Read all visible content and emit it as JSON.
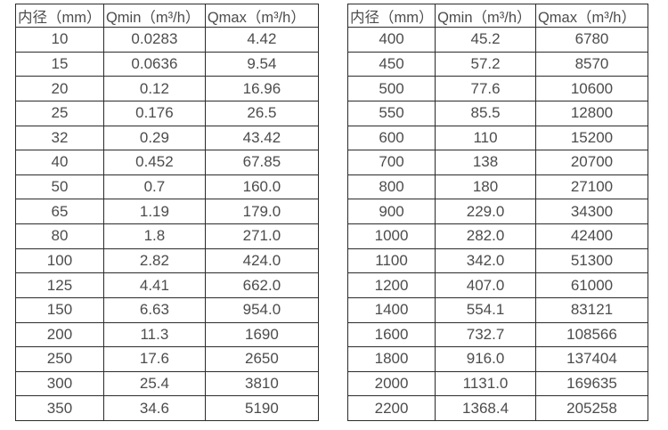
{
  "colors": {
    "background": "#ffffff",
    "table_border": "#2b2b2b",
    "table_text": "#4c4c4c"
  },
  "tables": [
    {
      "name": "flow-table-small-diameters",
      "headers": [
        "内径（mm）",
        "Qmin（m³/h）",
        "Qmax（m³/h）"
      ],
      "rows": [
        [
          "10",
          "0.0283",
          "4.42"
        ],
        [
          "15",
          "0.0636",
          "9.54"
        ],
        [
          "20",
          "0.12",
          "16.96"
        ],
        [
          "25",
          "0.176",
          "26.5"
        ],
        [
          "32",
          "0.29",
          "43.42"
        ],
        [
          "40",
          "0.452",
          "67.85"
        ],
        [
          "50",
          "0.7",
          "160.0"
        ],
        [
          "65",
          "1.19",
          "179.0"
        ],
        [
          "80",
          "1.8",
          "271.0"
        ],
        [
          "100",
          "2.82",
          "424.0"
        ],
        [
          "125",
          "4.41",
          "662.0"
        ],
        [
          "150",
          "6.63",
          "954.0"
        ],
        [
          "200",
          "11.3",
          "1690"
        ],
        [
          "250",
          "17.6",
          "2650"
        ],
        [
          "300",
          "25.4",
          "3810"
        ],
        [
          "350",
          "34.6",
          "5190"
        ]
      ]
    },
    {
      "name": "flow-table-large-diameters",
      "headers": [
        "内径（mm）",
        "Qmin（m³/h）",
        "Qmax（m³/h）"
      ],
      "rows": [
        [
          "400",
          "45.2",
          "6780"
        ],
        [
          "450",
          "57.2",
          "8570"
        ],
        [
          "500",
          "77.6",
          "10600"
        ],
        [
          "550",
          "85.5",
          "12800"
        ],
        [
          "600",
          "110",
          "15200"
        ],
        [
          "700",
          "138",
          "20700"
        ],
        [
          "800",
          "180",
          "27100"
        ],
        [
          "900",
          "229.0",
          "34300"
        ],
        [
          "1000",
          "282.0",
          "42400"
        ],
        [
          "1100",
          "342.0",
          "51300"
        ],
        [
          "1200",
          "407.0",
          "61000"
        ],
        [
          "1400",
          "554.1",
          "83121"
        ],
        [
          "1600",
          "732.7",
          "108566"
        ],
        [
          "1800",
          "916.0",
          "137404"
        ],
        [
          "2000",
          "1131.0",
          "169635"
        ],
        [
          "2200",
          "1368.4",
          "205258"
        ]
      ]
    }
  ]
}
